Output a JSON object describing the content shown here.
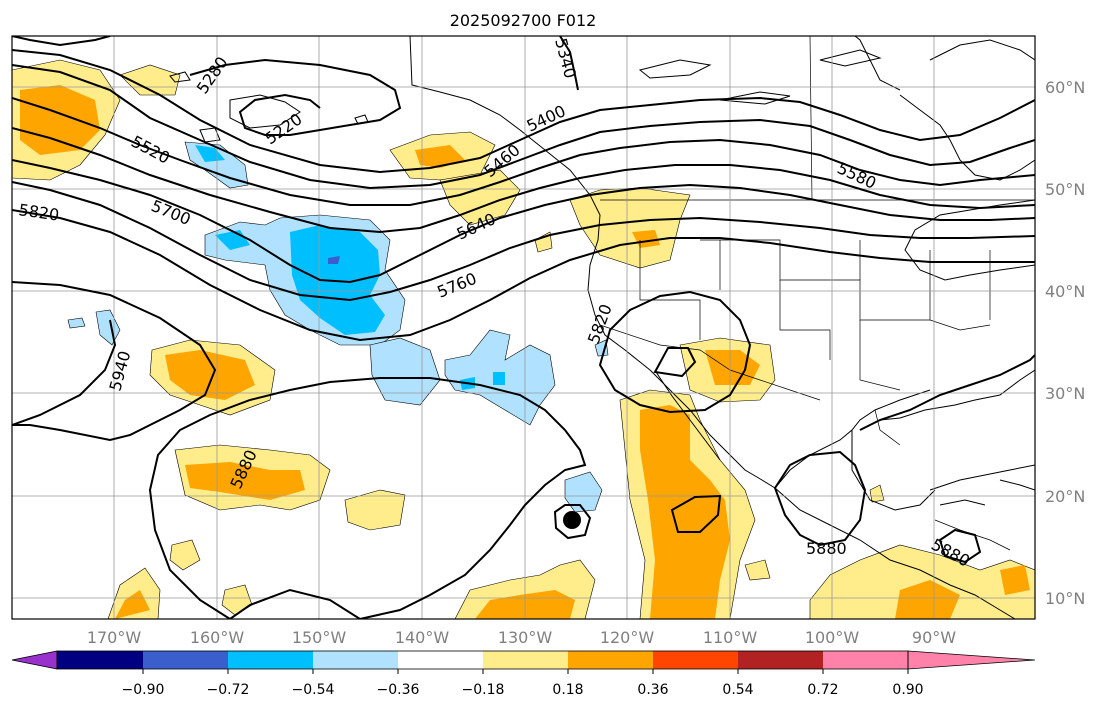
{
  "title": "2025092700 F012",
  "map": {
    "lon_labels": [
      "170°W",
      "160°W",
      "150°W",
      "140°W",
      "130°W",
      "120°W",
      "110°W",
      "100°W",
      "90°W"
    ],
    "lat_labels": [
      "60°N",
      "50°N",
      "40°N",
      "30°N",
      "20°N",
      "10°N"
    ],
    "lon_range": [
      -178,
      -78
    ],
    "lat_range": [
      8,
      65
    ]
  },
  "contours": {
    "color": "#000000",
    "labels": [
      "5280",
      "5220",
      "5520",
      "5820",
      "5700",
      "5400",
      "5460",
      "5640",
      "5760",
      "5580",
      "5340",
      "5820",
      "5940",
      "5880",
      "5880",
      "5880"
    ]
  },
  "colorbar": {
    "colors": [
      "#9932cc",
      "#000080",
      "#3a5fcd",
      "#00bfff",
      "#b0e2ff",
      "#ffffff",
      "#ffec8b",
      "#ffa500",
      "#ff4500",
      "#b22222",
      "#ff82ab"
    ],
    "tick_labels": [
      "−0.90",
      "−0.72",
      "−0.54",
      "−0.36",
      "−0.18",
      "0.18",
      "0.36",
      "0.54",
      "0.72",
      "0.90"
    ]
  },
  "storm_marker": {
    "lon": -125.5,
    "lat": 17.5
  }
}
